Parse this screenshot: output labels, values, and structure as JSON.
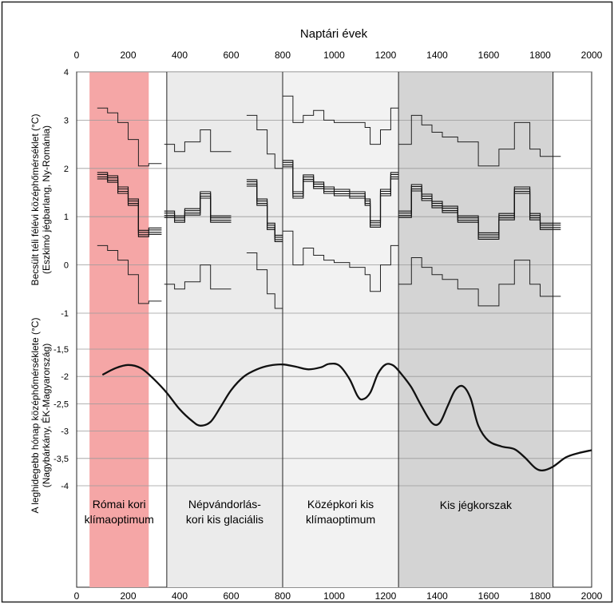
{
  "chart_data": {
    "type": "line",
    "title": "Naptári évek",
    "x_axis": {
      "label": "Naptári évek",
      "range": [
        0,
        2000
      ],
      "ticks": [
        "0",
        "200",
        "400",
        "600",
        "800",
        "1000",
        "1200",
        "1400",
        "1600",
        "1800",
        "2000"
      ]
    },
    "upper_panel": {
      "ylabel_line1": "Becsült téli félévi középhőmérséklet (°C)",
      "ylabel_line2": "(Eszkimó jégbarlang, Ny-Románia)",
      "ylim": [
        -1,
        4
      ],
      "ticks": [
        "4",
        "3",
        "2",
        "1",
        "0",
        "-1"
      ],
      "segments": [
        {
          "upper": [
            [
              80,
              3.25
            ],
            [
              120,
              3.15
            ],
            [
              160,
              2.95
            ],
            [
              200,
              2.6
            ],
            [
              240,
              2.05
            ],
            [
              280,
              2.1
            ]
          ],
          "mean": [
            [
              80,
              1.85
            ],
            [
              120,
              1.78
            ],
            [
              160,
              1.55
            ],
            [
              200,
              1.3
            ],
            [
              240,
              0.65
            ],
            [
              280,
              0.7
            ]
          ],
          "lower": [
            [
              80,
              0.4
            ],
            [
              120,
              0.3
            ],
            [
              160,
              0.1
            ],
            [
              200,
              -0.2
            ],
            [
              240,
              -0.8
            ],
            [
              280,
              -0.75
            ]
          ],
          "end": 330
        },
        {
          "upper": [
            [
              340,
              2.5
            ],
            [
              380,
              2.35
            ],
            [
              420,
              2.55
            ],
            [
              480,
              2.8
            ],
            [
              520,
              2.35
            ]
          ],
          "mean": [
            [
              340,
              1.05
            ],
            [
              380,
              0.95
            ],
            [
              420,
              1.1
            ],
            [
              480,
              1.45
            ],
            [
              520,
              0.95
            ]
          ],
          "lower": [
            [
              340,
              -0.4
            ],
            [
              380,
              -0.5
            ],
            [
              420,
              -0.35
            ],
            [
              480,
              0.0
            ],
            [
              520,
              -0.5
            ]
          ],
          "end": 600
        },
        {
          "upper": [
            [
              660,
              3.1
            ],
            [
              700,
              2.8
            ],
            [
              740,
              2.3
            ],
            [
              770,
              2.0
            ]
          ],
          "mean": [
            [
              660,
              1.7
            ],
            [
              700,
              1.3
            ],
            [
              740,
              0.8
            ],
            [
              770,
              0.55
            ]
          ],
          "lower": [
            [
              660,
              0.25
            ],
            [
              700,
              -0.1
            ],
            [
              740,
              -0.6
            ],
            [
              770,
              -0.9
            ]
          ],
          "end": 800
        },
        {
          "upper": [
            [
              800,
              3.5
            ],
            [
              840,
              2.95
            ],
            [
              880,
              3.1
            ],
            [
              920,
              3.2
            ],
            [
              960,
              3.0
            ],
            [
              1000,
              2.95
            ],
            [
              1060,
              2.95
            ],
            [
              1120,
              2.85
            ],
            [
              1140,
              2.5
            ],
            [
              1180,
              2.8
            ],
            [
              1220,
              3.25
            ]
          ],
          "mean": [
            [
              800,
              2.1
            ],
            [
              840,
              1.45
            ],
            [
              880,
              1.8
            ],
            [
              920,
              1.65
            ],
            [
              960,
              1.55
            ],
            [
              1000,
              1.5
            ],
            [
              1060,
              1.45
            ],
            [
              1120,
              1.3
            ],
            [
              1140,
              0.85
            ],
            [
              1180,
              1.5
            ],
            [
              1220,
              1.85
            ]
          ],
          "lower": [
            [
              800,
              0.7
            ],
            [
              840,
              0.0
            ],
            [
              880,
              0.35
            ],
            [
              920,
              0.2
            ],
            [
              960,
              0.1
            ],
            [
              1000,
              0.05
            ],
            [
              1060,
              -0.05
            ],
            [
              1120,
              -0.2
            ],
            [
              1140,
              -0.55
            ],
            [
              1180,
              0.0
            ],
            [
              1220,
              0.4
            ]
          ],
          "end": 1250
        },
        {
          "upper": [
            [
              1250,
              2.5
            ],
            [
              1300,
              3.1
            ],
            [
              1340,
              2.9
            ],
            [
              1380,
              2.75
            ],
            [
              1420,
              2.65
            ],
            [
              1480,
              2.55
            ],
            [
              1560,
              2.05
            ],
            [
              1640,
              2.4
            ],
            [
              1700,
              2.95
            ],
            [
              1760,
              2.4
            ],
            [
              1800,
              2.25
            ]
          ],
          "mean": [
            [
              1250,
              1.05
            ],
            [
              1300,
              1.6
            ],
            [
              1340,
              1.4
            ],
            [
              1380,
              1.25
            ],
            [
              1420,
              1.15
            ],
            [
              1480,
              0.95
            ],
            [
              1560,
              0.6
            ],
            [
              1640,
              1.0
            ],
            [
              1700,
              1.55
            ],
            [
              1760,
              1.0
            ],
            [
              1800,
              0.8
            ]
          ],
          "lower": [
            [
              1250,
              -0.4
            ],
            [
              1300,
              0.15
            ],
            [
              1340,
              -0.05
            ],
            [
              1380,
              -0.2
            ],
            [
              1420,
              -0.3
            ],
            [
              1480,
              -0.5
            ],
            [
              1560,
              -0.85
            ],
            [
              1640,
              -0.4
            ],
            [
              1700,
              0.1
            ],
            [
              1760,
              -0.4
            ],
            [
              1800,
              -0.65
            ]
          ],
          "end": 1880
        }
      ]
    },
    "lower_panel": {
      "ylabel_line1": "A leghidegebb hónap középhőmérséklete (°C)",
      "ylabel_line2": "(Nagybárkány, ÉK-Magyarország)",
      "ylim": [
        -4,
        -1.5
      ],
      "ticks": [
        "-1,5",
        "-2",
        "-2,5",
        "-3",
        "-3,5",
        "-4"
      ],
      "series": [
        [
          100,
          -1.97
        ],
        [
          150,
          -1.85
        ],
        [
          200,
          -1.79
        ],
        [
          250,
          -1.85
        ],
        [
          300,
          -2.05
        ],
        [
          350,
          -2.3
        ],
        [
          400,
          -2.6
        ],
        [
          450,
          -2.82
        ],
        [
          480,
          -2.9
        ],
        [
          520,
          -2.83
        ],
        [
          560,
          -2.55
        ],
        [
          600,
          -2.25
        ],
        [
          650,
          -2.0
        ],
        [
          700,
          -1.87
        ],
        [
          750,
          -1.8
        ],
        [
          800,
          -1.78
        ],
        [
          850,
          -1.82
        ],
        [
          900,
          -1.87
        ],
        [
          950,
          -1.83
        ],
        [
          980,
          -1.77
        ],
        [
          1020,
          -1.8
        ],
        [
          1060,
          -2.05
        ],
        [
          1090,
          -2.35
        ],
        [
          1110,
          -2.42
        ],
        [
          1140,
          -2.3
        ],
        [
          1170,
          -1.95
        ],
        [
          1200,
          -1.78
        ],
        [
          1230,
          -1.8
        ],
        [
          1260,
          -1.95
        ],
        [
          1300,
          -2.2
        ],
        [
          1340,
          -2.55
        ],
        [
          1380,
          -2.85
        ],
        [
          1410,
          -2.85
        ],
        [
          1440,
          -2.55
        ],
        [
          1470,
          -2.25
        ],
        [
          1500,
          -2.18
        ],
        [
          1530,
          -2.4
        ],
        [
          1560,
          -2.9
        ],
        [
          1600,
          -3.18
        ],
        [
          1650,
          -3.28
        ],
        [
          1700,
          -3.33
        ],
        [
          1740,
          -3.48
        ],
        [
          1780,
          -3.67
        ],
        [
          1810,
          -3.72
        ],
        [
          1850,
          -3.65
        ],
        [
          1900,
          -3.48
        ],
        [
          1950,
          -3.4
        ],
        [
          2000,
          -3.35
        ]
      ]
    },
    "periods": [
      {
        "label_line1": "Római kori",
        "label_line2": "klímaoptimum",
        "start": 50,
        "end": 280,
        "color": "#f5a6a6"
      },
      {
        "label_line1": "Népvándorlás-",
        "label_line2": "kori kis glaciális",
        "start": 350,
        "end": 800,
        "color": "#ebebeb"
      },
      {
        "label_line1": "Középkori kis",
        "label_line2": "klímaoptimum",
        "start": 800,
        "end": 1250,
        "color": "#f2f2f2"
      },
      {
        "label_line1": "Kis jégkorszak",
        "label_line2": "",
        "start": 1250,
        "end": 1850,
        "color": "#d4d4d4"
      }
    ],
    "grid": true
  }
}
